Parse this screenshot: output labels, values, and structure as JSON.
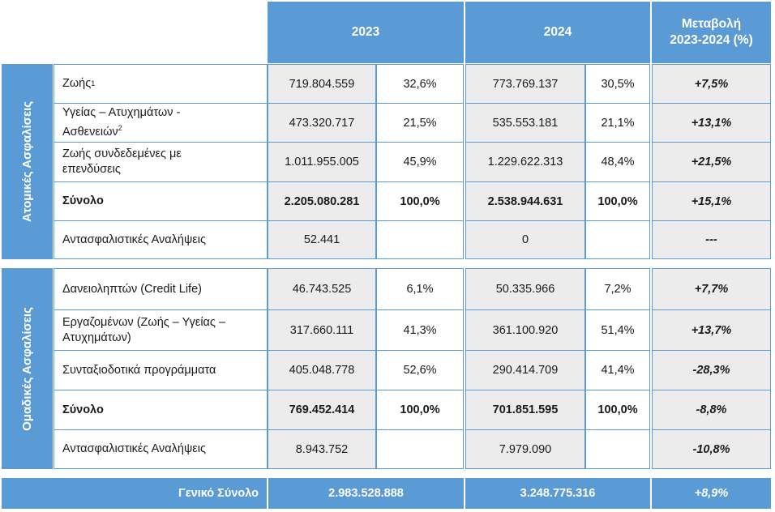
{
  "header": {
    "y2023": "2023",
    "y2024": "2024",
    "change_line1": "Μεταβολή",
    "change_line2": "2023-2024 (%)"
  },
  "individual": {
    "section_label": "Ατομικές Ασφαλίσεις",
    "rows": [
      {
        "label": "Ζωής",
        "sup": "1",
        "v2023": "719.804.559",
        "p2023": "32,6%",
        "v2024": "773.769.137",
        "p2024": "30,5%",
        "change": "+7,5%"
      },
      {
        "label_line1": "Υγείας – Ατυχημάτων -",
        "label_line2": "Ασθενειών",
        "sup": "2",
        "v2023": "473.320.717",
        "p2023": "21,5%",
        "v2024": "535.553.181",
        "p2024": "21,1%",
        "change": "+13,1%"
      },
      {
        "label_line1": "Ζωής συνδεδεμένες με",
        "label_line2": "επενδύσεις",
        "v2023": "1.011.955.005",
        "p2023": "45,9%",
        "v2024": "1.229.622.313",
        "p2024": "48,4%",
        "change": "+21,5%"
      }
    ],
    "total": {
      "label": "Σύνολο",
      "v2023": "2.205.080.281",
      "p2023": "100,0%",
      "v2024": "2.538.944.631",
      "p2024": "100,0%",
      "change": "+15,1%"
    },
    "reinsurance": {
      "label": "Αντασφαλιστικές Αναλήψεις",
      "v2023": "52.441",
      "v2024": "0",
      "change": "---"
    }
  },
  "group": {
    "section_label": "Ομαδικές Ασφαλίσεις",
    "rows": [
      {
        "label": "Δανειοληπτών (Credit Life)",
        "v2023": "46.743.525",
        "p2023": "6,1%",
        "v2024": "50.335.966",
        "p2024": "7,2%",
        "change": "+7,7%"
      },
      {
        "label_line1": "Εργαζομένων (Ζωής – Υγείας –",
        "label_line2": "Ατυχημάτων)",
        "v2023": "317.660.111",
        "p2023": "41,3%",
        "v2024": "361.100.920",
        "p2024": "51,4%",
        "change": "+13,7%"
      },
      {
        "label": "Συνταξιοδοτικά προγράμματα",
        "v2023": "405.048.778",
        "p2023": "52,6%",
        "v2024": "290.414.709",
        "p2024": "41,4%",
        "change": "-28,3%"
      }
    ],
    "total": {
      "label": "Σύνολο",
      "v2023": "769.452.414",
      "p2023": "100,0%",
      "v2024": "701.851.595",
      "p2024": "100,0%",
      "change": "-8,8%"
    },
    "reinsurance": {
      "label": "Αντασφαλιστικές Αναλήψεις",
      "v2023": "8.943.752",
      "v2024": "7.979.090",
      "change": "-10,8%"
    }
  },
  "grand_total": {
    "label": "Γενικό Σύνολο",
    "v2023": "2.983.528.888",
    "v2024": "3.248.775.316",
    "change": "+8,9%"
  },
  "colors": {
    "header_blue": "#5b9bd5",
    "cell_gray": "#ececec"
  }
}
